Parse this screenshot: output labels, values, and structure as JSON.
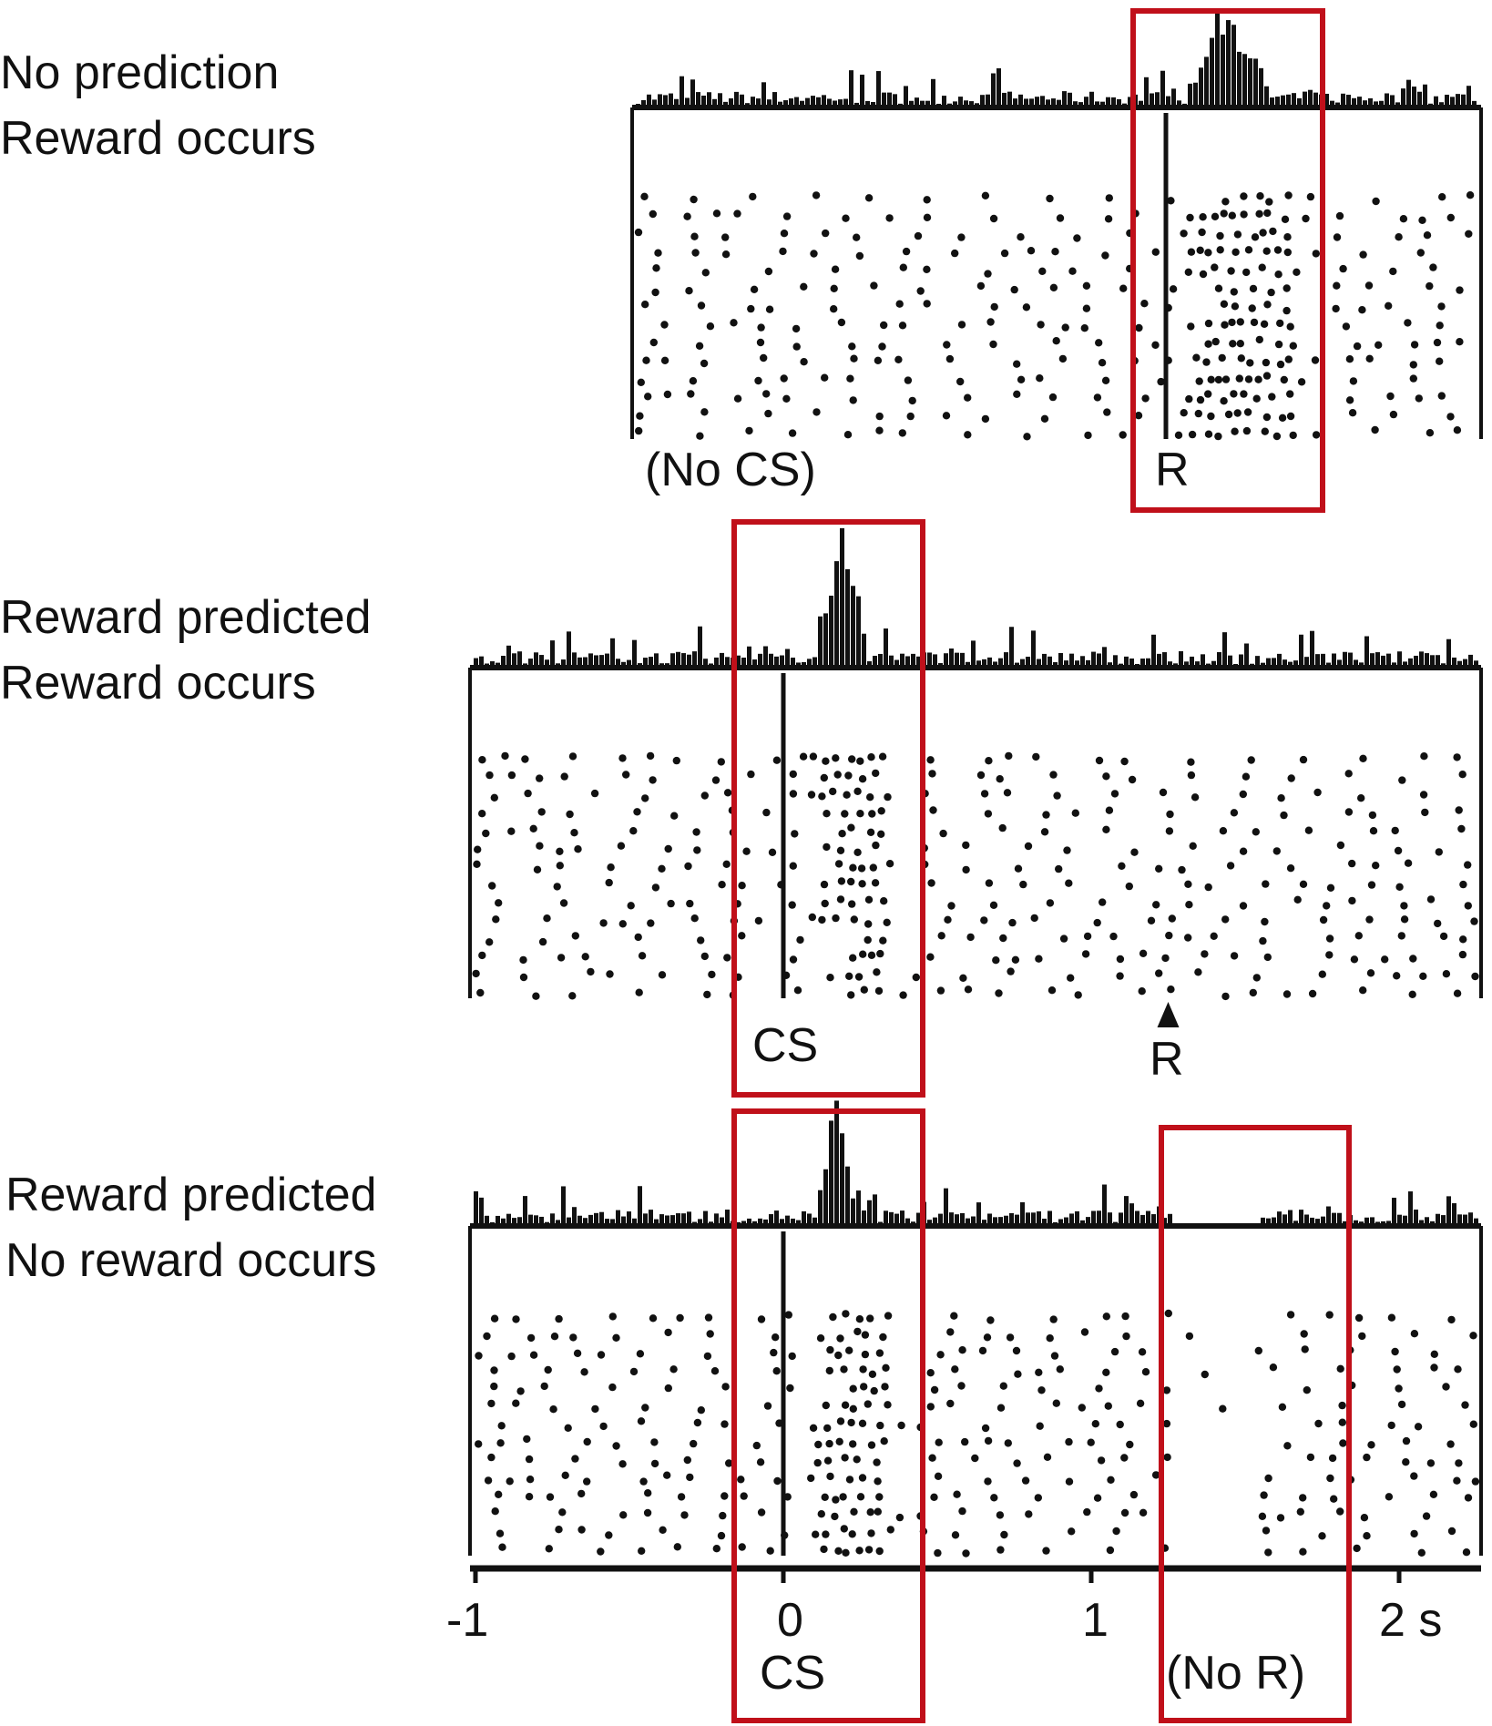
{
  "panels": [
    {
      "label_line1": "No prediction",
      "label_line2": "Reward occurs",
      "event_left": "(No CS)",
      "event_right": "R"
    },
    {
      "label_line1": "Reward predicted",
      "label_line2": "Reward occurs",
      "event_left": "CS",
      "event_right": "R"
    },
    {
      "label_line1": "Reward predicted",
      "label_line2": "No reward occurs",
      "event_left": "CS",
      "event_right": "(No R)"
    }
  ],
  "axis": {
    "tick_labels": [
      "-1",
      "0",
      "1",
      "2 s"
    ]
  },
  "colors": {
    "ink": "#111111",
    "highlight": "#c0101a"
  }
}
